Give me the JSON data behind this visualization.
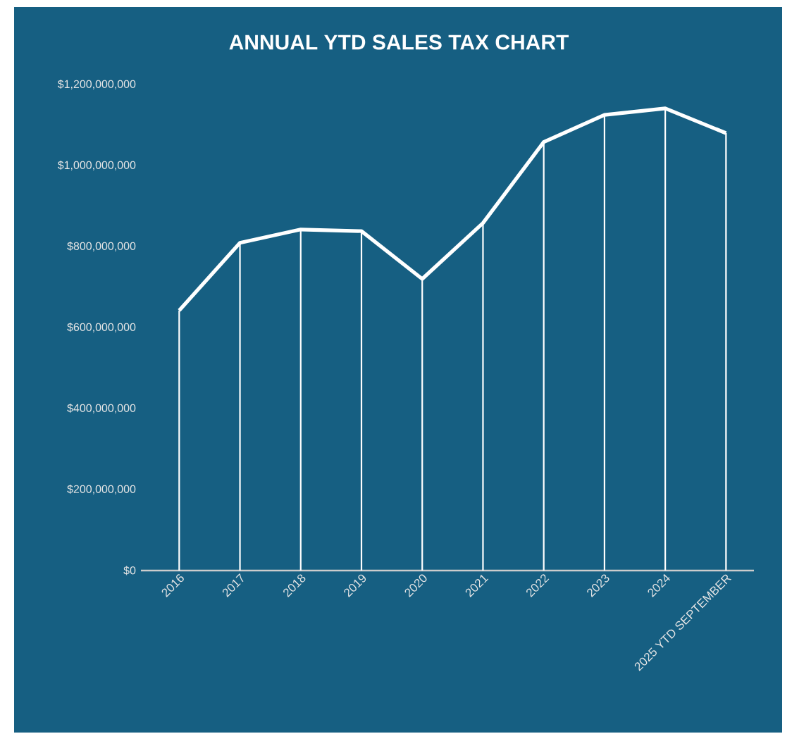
{
  "chart_data": {
    "type": "line",
    "title": "ANNUAL YTD SALES TAX CHART",
    "categories": [
      "2016",
      "2017",
      "2018",
      "2019",
      "2020",
      "2021",
      "2022",
      "2023",
      "2024",
      "2025 YTD SEPTEMBER"
    ],
    "series": [
      {
        "color": "#ffffff",
        "values": [
          642000000,
          809000000,
          842000000,
          838000000,
          720000000,
          858000000,
          1058000000,
          1125000000,
          1141000000,
          1080000000
        ]
      },
      {
        "type": "bar",
        "color": "#ffffff",
        "values": [
          642000000,
          809000000,
          842000000,
          838000000,
          720000000,
          858000000,
          1058000000,
          1125000000,
          1141000000,
          1080000000
        ]
      }
    ],
    "ylim": [
      0,
      1200000000
    ],
    "yticks": [
      {
        "value": 0,
        "label": "$0"
      },
      {
        "value": 200000000,
        "label": "$200,000,000"
      },
      {
        "value": 400000000,
        "label": "$400,000,000"
      },
      {
        "value": 600000000,
        "label": "$600,000,000"
      },
      {
        "value": 800000000,
        "label": "$800,000,000"
      },
      {
        "value": 1000000000,
        "label": "$1,000,000,000"
      },
      {
        "value": 1200000000,
        "label": "$1,200,000,000"
      }
    ],
    "grid": false,
    "legend": false,
    "marker": "none",
    "line_style": "solid"
  }
}
